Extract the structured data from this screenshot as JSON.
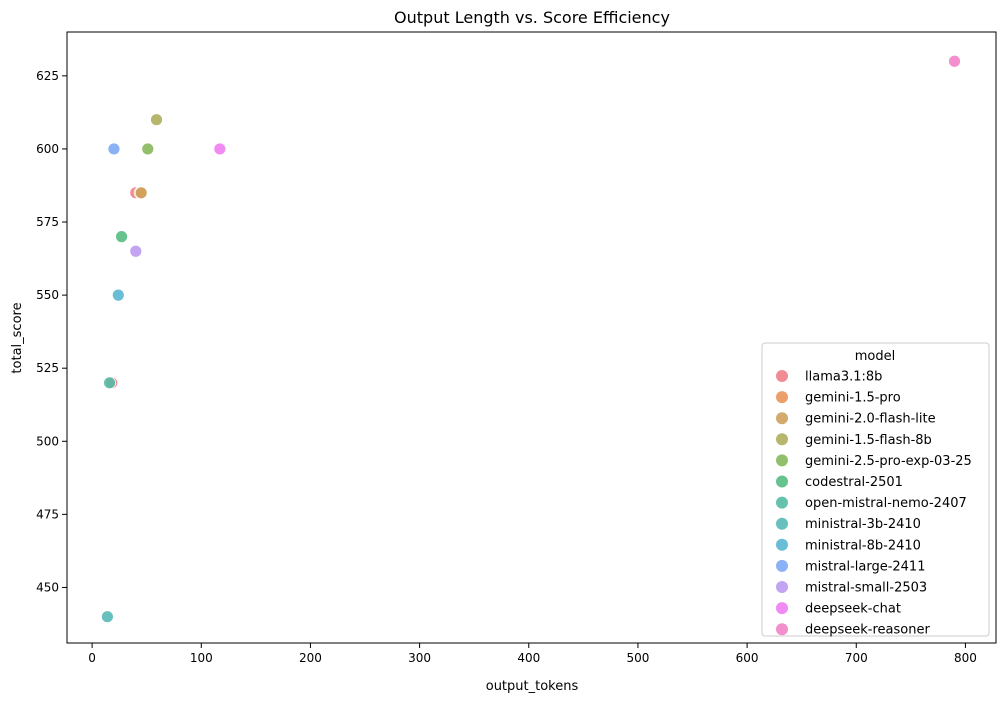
{
  "chart_data": {
    "type": "scatter",
    "title": "Output Length vs. Score Efficiency",
    "xlabel": "output_tokens",
    "ylabel": "total_score",
    "xlim": [
      -23,
      828
    ],
    "ylim": [
      431,
      640
    ],
    "xticks": [
      0,
      100,
      200,
      300,
      400,
      500,
      600,
      700,
      800
    ],
    "yticks": [
      450,
      475,
      500,
      525,
      550,
      575,
      600,
      625
    ],
    "grid": false,
    "legend": {
      "title": "model",
      "position": "lower-right"
    },
    "series": [
      {
        "name": "llama3.1:8b",
        "color": "#f0808c",
        "points": [
          [
            40,
            585
          ],
          [
            18,
            520
          ]
        ]
      },
      {
        "name": "gemini-1.5-pro",
        "color": "#e9955a",
        "points": [
          [
            44,
            585
          ]
        ]
      },
      {
        "name": "gemini-2.0-flash-lite",
        "color": "#cda25d",
        "points": [
          [
            45,
            585
          ]
        ]
      },
      {
        "name": "gemini-1.5-flash-8b",
        "color": "#aeae5c",
        "points": [
          [
            59,
            610
          ]
        ]
      },
      {
        "name": "gemini-2.5-pro-exp-03-25",
        "color": "#87b85c",
        "points": [
          [
            51,
            600
          ]
        ]
      },
      {
        "name": "codestral-2501",
        "color": "#55bc82",
        "points": [
          [
            27,
            570
          ]
        ]
      },
      {
        "name": "open-mistral-nemo-2407",
        "color": "#55bba4",
        "points": [
          [
            16,
            520
          ]
        ]
      },
      {
        "name": "ministral-3b-2410",
        "color": "#57b9b7",
        "points": [
          [
            14,
            440
          ]
        ]
      },
      {
        "name": "ministral-8b-2410",
        "color": "#5ab6d1",
        "points": [
          [
            24,
            550
          ]
        ]
      },
      {
        "name": "mistral-large-2411",
        "color": "#7ea9f5",
        "points": [
          [
            20,
            600
          ]
        ]
      },
      {
        "name": "mistral-small-2503",
        "color": "#bb9af2",
        "points": [
          [
            40,
            565
          ]
        ]
      },
      {
        "name": "deepseek-chat",
        "color": "#ef7ef3",
        "points": [
          [
            117,
            600
          ]
        ]
      },
      {
        "name": "deepseek-reasoner",
        "color": "#f283c7",
        "points": [
          [
            790,
            630
          ]
        ]
      }
    ]
  }
}
